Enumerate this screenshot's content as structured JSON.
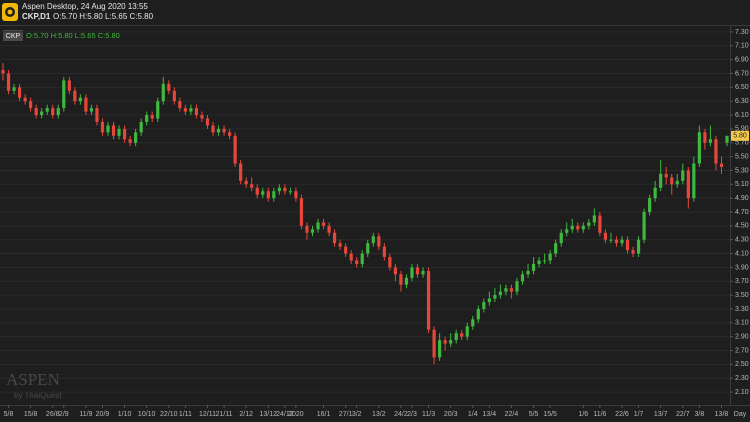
{
  "header": {
    "title": "Aspen Desktop, 24 Aug 2020 13:55",
    "symbol": "CKP,D1",
    "ohlc": "O:5.70 H:5.80 L:5.65 C:5.80"
  },
  "legend": {
    "symbol": "CKP",
    "ohlc": "O:5.70 H:5.80 L:5.65 C:5.80"
  },
  "watermark": {
    "brand": "ASPEN",
    "by": "by ThaiQuest"
  },
  "chart_data": {
    "type": "candlestick",
    "x_unit_label": "Day",
    "last_label": "5.80",
    "up_color": "#3fb83f",
    "down_color": "#e5483a",
    "ylim": [
      2.0,
      7.4
    ],
    "yticks": [
      {
        "value": 2.1,
        "label": "2.10"
      },
      {
        "value": 2.3,
        "label": "2.30"
      },
      {
        "value": 2.5,
        "label": "2.50"
      },
      {
        "value": 2.7,
        "label": "2.70"
      },
      {
        "value": 2.9,
        "label": "2.90"
      },
      {
        "value": 3.1,
        "label": "3.10"
      },
      {
        "value": 3.3,
        "label": "3.30"
      },
      {
        "value": 3.5,
        "label": "3.50"
      },
      {
        "value": 3.7,
        "label": "3.70"
      },
      {
        "value": 3.9,
        "label": "3.90"
      },
      {
        "value": 4.1,
        "label": "4.10"
      },
      {
        "value": 4.3,
        "label": "4.30"
      },
      {
        "value": 4.5,
        "label": "4.50"
      },
      {
        "value": 4.7,
        "label": "4.70"
      },
      {
        "value": 4.9,
        "label": "4.90"
      },
      {
        "value": 5.1,
        "label": "5.10"
      },
      {
        "value": 5.3,
        "label": "5.30"
      },
      {
        "value": 5.5,
        "label": "5.50"
      },
      {
        "value": 5.7,
        "label": "5.70"
      },
      {
        "value": 5.9,
        "label": "5.90"
      },
      {
        "value": 6.1,
        "label": "6.10"
      },
      {
        "value": 6.3,
        "label": "6.30"
      },
      {
        "value": 6.5,
        "label": "6.50"
      },
      {
        "value": 6.7,
        "label": "6.70"
      },
      {
        "value": 6.9,
        "label": "6.90"
      },
      {
        "value": 7.1,
        "label": "7.10"
      },
      {
        "value": 7.3,
        "label": "7.30"
      }
    ],
    "grid": true,
    "categories": [
      null,
      "5/8",
      null,
      null,
      null,
      "15/8",
      null,
      null,
      null,
      "26/8",
      null,
      "2/9",
      null,
      null,
      null,
      "11/9",
      null,
      null,
      "20/9",
      null,
      null,
      null,
      "1/10",
      null,
      null,
      null,
      "10/10",
      null,
      null,
      null,
      "22/10",
      null,
      null,
      "1/11",
      null,
      null,
      null,
      "12/11",
      null,
      null,
      "21/11",
      null,
      null,
      null,
      "2/12",
      null,
      null,
      null,
      "13/12",
      null,
      null,
      "24/12",
      null,
      "2020",
      null,
      null,
      null,
      null,
      "16/1",
      null,
      null,
      null,
      "27/1",
      null,
      "3/2",
      null,
      null,
      null,
      "13/2",
      null,
      null,
      null,
      "24/2",
      null,
      "2/3",
      null,
      null,
      "11/3",
      null,
      null,
      null,
      "20/3",
      null,
      null,
      null,
      "1/4",
      null,
      null,
      "13/4",
      null,
      null,
      null,
      "22/4",
      null,
      null,
      null,
      "5/5",
      null,
      null,
      "15/5",
      null,
      null,
      null,
      null,
      null,
      "1/6",
      null,
      null,
      "11/6",
      null,
      null,
      null,
      "22/6",
      null,
      null,
      "1/7",
      null,
      null,
      null,
      "13/7",
      null,
      null,
      null,
      "22/7",
      null,
      null,
      "3/8",
      null,
      null,
      null,
      "13/8",
      null
    ],
    "open": [
      6.75,
      6.7,
      6.45,
      6.5,
      6.35,
      6.3,
      6.2,
      6.1,
      6.15,
      6.2,
      6.1,
      6.2,
      6.6,
      6.45,
      6.3,
      6.35,
      6.15,
      6.2,
      6.0,
      5.85,
      5.95,
      5.8,
      5.9,
      5.75,
      5.7,
      5.85,
      6.0,
      6.1,
      6.05,
      6.3,
      6.55,
      6.45,
      6.3,
      6.2,
      6.15,
      6.2,
      6.1,
      6.05,
      5.95,
      5.85,
      5.9,
      5.85,
      5.8,
      5.4,
      5.15,
      5.1,
      5.05,
      4.95,
      5.0,
      4.9,
      5.0,
      5.05,
      5.0,
      5.0,
      4.9,
      4.5,
      4.4,
      4.45,
      4.55,
      4.5,
      4.4,
      4.25,
      4.2,
      4.1,
      4.0,
      3.95,
      4.1,
      4.25,
      4.35,
      4.2,
      4.05,
      3.9,
      3.8,
      3.65,
      3.75,
      3.9,
      3.8,
      3.85,
      3.0,
      2.6,
      2.85,
      2.8,
      2.85,
      2.95,
      2.9,
      3.05,
      3.15,
      3.3,
      3.4,
      3.45,
      3.5,
      3.55,
      3.6,
      3.55,
      3.7,
      3.8,
      3.85,
      3.95,
      4.0,
      4.0,
      4.1,
      4.25,
      4.4,
      4.45,
      4.5,
      4.45,
      4.5,
      4.55,
      4.65,
      4.4,
      4.3,
      4.3,
      4.25,
      4.3,
      4.15,
      4.1,
      4.3,
      4.7,
      4.9,
      5.05,
      5.25,
      5.2,
      5.1,
      5.15,
      5.3,
      4.9,
      5.4,
      5.85,
      5.7,
      5.75,
      5.4,
      5.7
    ],
    "high": [
      6.85,
      6.75,
      6.55,
      6.55,
      6.4,
      6.35,
      6.25,
      6.2,
      6.25,
      6.25,
      6.25,
      6.65,
      6.65,
      6.5,
      6.4,
      6.4,
      6.25,
      6.25,
      6.05,
      6.0,
      6.0,
      5.95,
      5.95,
      5.8,
      5.9,
      6.05,
      6.15,
      6.15,
      6.35,
      6.65,
      6.6,
      6.5,
      6.35,
      6.25,
      6.25,
      6.25,
      6.15,
      6.1,
      6.0,
      5.95,
      5.95,
      5.9,
      5.85,
      5.45,
      5.2,
      5.2,
      5.1,
      5.05,
      5.05,
      5.05,
      5.1,
      5.1,
      5.05,
      5.05,
      4.95,
      4.55,
      4.5,
      4.6,
      4.6,
      4.55,
      4.45,
      4.3,
      4.25,
      4.15,
      4.05,
      4.15,
      4.3,
      4.4,
      4.4,
      4.25,
      4.1,
      3.95,
      3.85,
      3.8,
      3.95,
      3.95,
      3.9,
      3.9,
      3.05,
      2.95,
      2.9,
      2.95,
      3.0,
      3.0,
      3.1,
      3.2,
      3.35,
      3.45,
      3.55,
      3.6,
      3.65,
      3.65,
      3.65,
      3.75,
      3.85,
      3.95,
      4.05,
      4.05,
      4.1,
      4.15,
      4.3,
      4.45,
      4.55,
      4.6,
      4.55,
      4.55,
      4.6,
      4.75,
      4.7,
      4.45,
      4.4,
      4.35,
      4.35,
      4.35,
      4.2,
      4.35,
      4.75,
      4.95,
      5.15,
      5.45,
      5.35,
      5.25,
      5.25,
      5.4,
      5.35,
      5.5,
      5.95,
      5.9,
      5.95,
      5.8,
      5.5,
      5.8
    ],
    "low": [
      6.6,
      6.4,
      6.4,
      6.3,
      6.25,
      6.15,
      6.05,
      6.05,
      6.1,
      6.05,
      6.05,
      6.15,
      6.4,
      6.25,
      6.25,
      6.1,
      6.1,
      5.95,
      5.8,
      5.8,
      5.75,
      5.75,
      5.7,
      5.65,
      5.65,
      5.8,
      5.95,
      6.0,
      6.0,
      6.25,
      6.4,
      6.25,
      6.15,
      6.1,
      6.1,
      6.05,
      6.0,
      5.9,
      5.8,
      5.8,
      5.8,
      5.75,
      5.35,
      5.1,
      5.05,
      5.0,
      4.9,
      4.9,
      4.85,
      4.85,
      4.95,
      4.95,
      4.95,
      4.85,
      4.45,
      4.3,
      4.35,
      4.4,
      4.45,
      4.35,
      4.2,
      4.15,
      4.05,
      3.95,
      3.9,
      3.9,
      4.05,
      4.2,
      4.15,
      4.0,
      3.85,
      3.7,
      3.55,
      3.6,
      3.7,
      3.75,
      3.75,
      2.95,
      2.5,
      2.55,
      2.7,
      2.75,
      2.8,
      2.85,
      2.85,
      3.0,
      3.1,
      3.25,
      3.35,
      3.4,
      3.45,
      3.5,
      3.45,
      3.5,
      3.65,
      3.75,
      3.8,
      3.9,
      3.95,
      3.95,
      4.05,
      4.2,
      4.35,
      4.4,
      4.4,
      4.4,
      4.45,
      4.5,
      4.35,
      4.25,
      4.25,
      4.2,
      4.2,
      4.1,
      4.05,
      4.05,
      4.25,
      4.65,
      4.85,
      5.0,
      5.1,
      4.95,
      5.05,
      5.1,
      4.75,
      4.85,
      5.35,
      5.6,
      5.65,
      5.3,
      5.25,
      5.65
    ],
    "close": [
      6.7,
      6.45,
      6.5,
      6.35,
      6.3,
      6.2,
      6.1,
      6.15,
      6.2,
      6.1,
      6.2,
      6.6,
      6.45,
      6.3,
      6.35,
      6.15,
      6.2,
      6.0,
      5.85,
      5.95,
      5.8,
      5.9,
      5.75,
      5.7,
      5.85,
      6.0,
      6.1,
      6.05,
      6.3,
      6.55,
      6.45,
      6.3,
      6.2,
      6.15,
      6.2,
      6.1,
      6.05,
      5.95,
      5.85,
      5.9,
      5.85,
      5.8,
      5.4,
      5.15,
      5.1,
      5.05,
      4.95,
      5.0,
      4.9,
      5.0,
      5.05,
      5.0,
      5.0,
      4.9,
      4.5,
      4.4,
      4.45,
      4.55,
      4.5,
      4.4,
      4.25,
      4.2,
      4.1,
      4.0,
      3.95,
      4.1,
      4.25,
      4.35,
      4.2,
      4.05,
      3.9,
      3.8,
      3.65,
      3.75,
      3.9,
      3.8,
      3.85,
      3.0,
      2.6,
      2.85,
      2.8,
      2.85,
      2.95,
      2.9,
      3.05,
      3.15,
      3.3,
      3.4,
      3.45,
      3.5,
      3.55,
      3.6,
      3.55,
      3.7,
      3.8,
      3.85,
      3.95,
      4.0,
      4.0,
      4.1,
      4.25,
      4.4,
      4.45,
      4.5,
      4.45,
      4.5,
      4.55,
      4.65,
      4.4,
      4.3,
      4.3,
      4.25,
      4.3,
      4.15,
      4.1,
      4.3,
      4.7,
      4.9,
      5.05,
      5.25,
      5.2,
      5.1,
      5.15,
      5.3,
      4.9,
      5.4,
      5.85,
      5.7,
      5.75,
      5.4,
      5.35,
      5.8
    ]
  }
}
